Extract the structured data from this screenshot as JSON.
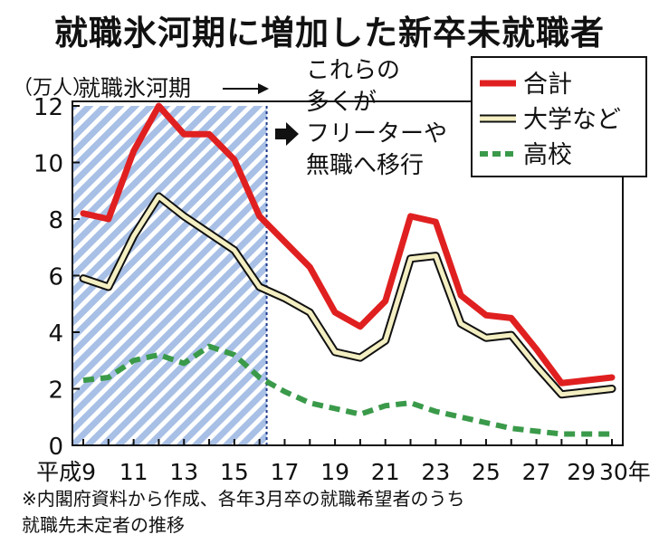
{
  "title": "就職氷河期に増加した新卒未就職者",
  "chart_data": {
    "type": "line",
    "ylabel": "（万人）",
    "ylim": [
      0,
      12
    ],
    "yticks": [
      0,
      2,
      4,
      6,
      8,
      10,
      12
    ],
    "x": [
      9,
      10,
      11,
      12,
      13,
      14,
      15,
      16,
      17,
      18,
      19,
      20,
      21,
      22,
      23,
      24,
      25,
      26,
      27,
      28,
      29,
      30
    ],
    "xtick_values": [
      9,
      11,
      13,
      15,
      17,
      19,
      21,
      23,
      25,
      27,
      29,
      30
    ],
    "xtick_labels": [
      "平成9",
      "11",
      "13",
      "15",
      "17",
      "19",
      "21",
      "23",
      "25",
      "27",
      "29",
      "30年"
    ],
    "series": [
      {
        "name": "合計",
        "color": "#e02020",
        "style": "solid",
        "values": [
          8.2,
          8.0,
          10.4,
          12.0,
          11.0,
          11.0,
          10.1,
          8.1,
          7.2,
          6.3,
          4.7,
          4.2,
          5.1,
          8.1,
          7.9,
          5.3,
          4.6,
          4.5,
          3.4,
          2.2,
          2.3,
          2.4
        ]
      },
      {
        "name": "大学など",
        "color": "#f4efc2",
        "style": "outlined",
        "values": [
          5.9,
          5.6,
          7.4,
          8.8,
          8.1,
          7.5,
          6.9,
          5.6,
          5.2,
          4.7,
          3.3,
          3.1,
          3.7,
          6.6,
          6.7,
          4.3,
          3.8,
          3.9,
          2.8,
          1.8,
          1.9,
          2.0
        ]
      },
      {
        "name": "高校",
        "color": "#3a9a4a",
        "style": "dashed",
        "values": [
          2.3,
          2.4,
          3.0,
          3.2,
          2.9,
          3.5,
          3.2,
          2.4,
          1.9,
          1.5,
          1.3,
          1.1,
          1.4,
          1.5,
          1.2,
          1.0,
          0.8,
          0.6,
          0.5,
          0.4,
          0.4,
          0.4
        ]
      }
    ],
    "shaded_region": {
      "x_start": 9,
      "x_end": 16,
      "label": "就職氷河期"
    },
    "annotation": [
      "これらの",
      "多くが",
      "フリーターや",
      "無職へ移行"
    ],
    "legend_position": "top-right",
    "grid": false
  },
  "note": [
    "※内閣府資料から作成、各年3月卒の就職希望者のうち",
    "就職先未定者の推移"
  ]
}
